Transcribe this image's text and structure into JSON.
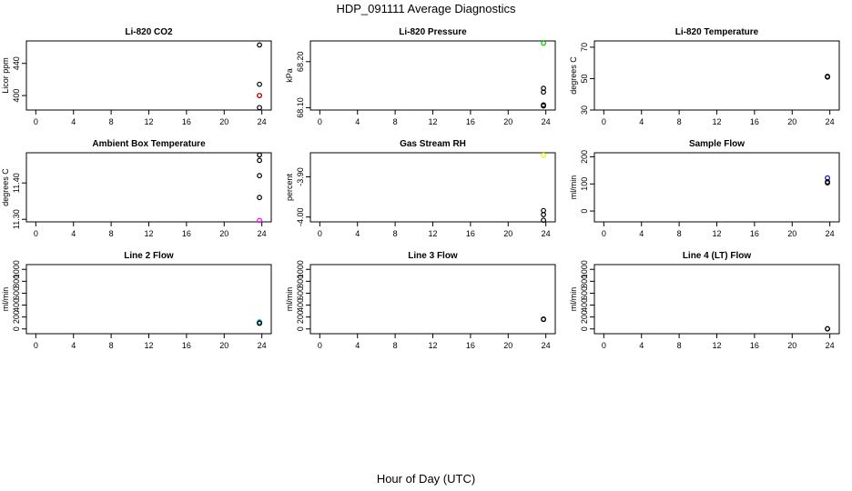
{
  "figure": {
    "title": "HDP_091111  Average Diagnostics",
    "xlabel": "Hour of Day (UTC)"
  },
  "colors": {
    "axis": "#000000",
    "series": "#000000"
  },
  "chart_data": [
    {
      "type": "scatter",
      "title": "Li-820 CO2",
      "ylabel": "Licor ppm",
      "xlim": [
        -1,
        25
      ],
      "ylim": [
        382,
        468
      ],
      "xticks": [
        0,
        4,
        8,
        12,
        16,
        20,
        24
      ],
      "xticklabels": [
        "0",
        "4",
        "8",
        "12",
        "16",
        "20",
        "24"
      ],
      "yticks": [
        400,
        440
      ],
      "yticklabels": [
        "400",
        "440"
      ],
      "points": [
        {
          "x": 23.75,
          "y": 463,
          "color": "#000000"
        },
        {
          "x": 23.75,
          "y": 414,
          "color": "#000000"
        },
        {
          "x": 23.75,
          "y": 400,
          "color": "#000000"
        },
        {
          "x": 23.75,
          "y": 400,
          "color": "#cc0000"
        },
        {
          "x": 23.75,
          "y": 385,
          "color": "#000000"
        }
      ]
    },
    {
      "type": "scatter",
      "title": "Li-820 Pressure",
      "ylabel": "kPa",
      "xlim": [
        -1,
        25
      ],
      "ylim": [
        68.095,
        68.245
      ],
      "xticks": [
        0,
        4,
        8,
        12,
        16,
        20,
        24
      ],
      "xticklabels": [
        "0",
        "4",
        "8",
        "12",
        "16",
        "20",
        "24"
      ],
      "yticks": [
        68.1,
        68.2
      ],
      "yticklabels": [
        "68.10",
        "68.20"
      ],
      "points": [
        {
          "x": 23.75,
          "y": 68.24,
          "color": "#00cc00"
        },
        {
          "x": 23.75,
          "y": 68.142,
          "color": "#000000"
        },
        {
          "x": 23.75,
          "y": 68.134,
          "color": "#000000"
        },
        {
          "x": 23.75,
          "y": 68.106,
          "color": "#000000"
        },
        {
          "x": 23.75,
          "y": 68.104,
          "color": "#000000"
        }
      ]
    },
    {
      "type": "scatter",
      "title": "Li-820 Temperature",
      "ylabel": "degrees C",
      "xlim": [
        -1,
        25
      ],
      "ylim": [
        30,
        74
      ],
      "xticks": [
        0,
        4,
        8,
        12,
        16,
        20,
        24
      ],
      "xticklabels": [
        "0",
        "4",
        "8",
        "12",
        "16",
        "20",
        "24"
      ],
      "yticks": [
        30,
        50,
        70
      ],
      "yticklabels": [
        "30",
        "50",
        "70"
      ],
      "points": [
        {
          "x": 23.75,
          "y": 51.2,
          "color": "#000000"
        },
        {
          "x": 23.75,
          "y": 51.0,
          "color": "#000000"
        },
        {
          "x": 23.75,
          "y": 51.4,
          "color": "#000000"
        }
      ]
    },
    {
      "type": "scatter",
      "title": "Ambient Box Temperature",
      "ylabel": "degrees C",
      "xlim": [
        -1,
        25
      ],
      "ylim": [
        11.293,
        11.483
      ],
      "xticks": [
        0,
        4,
        8,
        12,
        16,
        20,
        24
      ],
      "xticklabels": [
        "0",
        "4",
        "8",
        "12",
        "16",
        "20",
        "24"
      ],
      "yticks": [
        11.3,
        11.4
      ],
      "yticklabels": [
        "11.30",
        "11.40"
      ],
      "points": [
        {
          "x": 23.75,
          "y": 11.477,
          "color": "#000000"
        },
        {
          "x": 23.75,
          "y": 11.462,
          "color": "#000000"
        },
        {
          "x": 23.75,
          "y": 11.42,
          "color": "#000000"
        },
        {
          "x": 23.75,
          "y": 11.36,
          "color": "#000000"
        },
        {
          "x": 23.75,
          "y": 11.297,
          "color": "#ff00ff"
        }
      ]
    },
    {
      "type": "scatter",
      "title": "Gas Stream RH",
      "ylabel": "percent",
      "xlim": [
        -1,
        25
      ],
      "ylim": [
        -4.012,
        -3.84
      ],
      "xticks": [
        0,
        4,
        8,
        12,
        16,
        20,
        24
      ],
      "xticklabels": [
        "0",
        "4",
        "8",
        "12",
        "16",
        "20",
        "24"
      ],
      "yticks": [
        -4.0,
        -3.9
      ],
      "yticklabels": [
        "-4.00",
        "-3.90"
      ],
      "points": [
        {
          "x": 23.75,
          "y": -3.846,
          "color": "#eeee00"
        },
        {
          "x": 23.75,
          "y": -3.984,
          "color": "#000000"
        },
        {
          "x": 23.75,
          "y": -3.994,
          "color": "#000000"
        },
        {
          "x": 23.75,
          "y": -4.008,
          "color": "#000000"
        }
      ]
    },
    {
      "type": "scatter",
      "title": "Sample Flow",
      "ylabel": "ml/min",
      "xlim": [
        -1,
        25
      ],
      "ylim": [
        -40,
        215
      ],
      "xticks": [
        0,
        4,
        8,
        12,
        16,
        20,
        24
      ],
      "xticklabels": [
        "0",
        "4",
        "8",
        "12",
        "16",
        "20",
        "24"
      ],
      "yticks": [
        0,
        100,
        200
      ],
      "yticklabels": [
        "0",
        "100",
        "200"
      ],
      "points": [
        {
          "x": 23.75,
          "y": 122,
          "color": "#0000cc"
        },
        {
          "x": 23.75,
          "y": 108,
          "color": "#000000"
        },
        {
          "x": 23.75,
          "y": 104,
          "color": "#000000"
        }
      ]
    },
    {
      "type": "scatter",
      "title": "Line 2 Flow",
      "ylabel": "ml/min",
      "xlim": [
        -1,
        25
      ],
      "ylim": [
        -80,
        1080
      ],
      "xticks": [
        0,
        4,
        8,
        12,
        16,
        20,
        24
      ],
      "xticklabels": [
        "0",
        "4",
        "8",
        "12",
        "16",
        "20",
        "24"
      ],
      "yticks": [
        0,
        200,
        400,
        600,
        800,
        1000
      ],
      "yticklabels": [
        "0",
        "200",
        "400",
        "600",
        "800",
        "1000"
      ],
      "points": [
        {
          "x": 23.75,
          "y": 120,
          "color": "#00cccc"
        },
        {
          "x": 23.75,
          "y": 100,
          "color": "#000000"
        },
        {
          "x": 23.75,
          "y": 95,
          "color": "#000000"
        }
      ]
    },
    {
      "type": "scatter",
      "title": "Line 3 Flow",
      "ylabel": "ml/min",
      "xlim": [
        -1,
        25
      ],
      "ylim": [
        -80,
        1080
      ],
      "xticks": [
        0,
        4,
        8,
        12,
        16,
        20,
        24
      ],
      "xticklabels": [
        "0",
        "4",
        "8",
        "12",
        "16",
        "20",
        "24"
      ],
      "yticks": [
        0,
        200,
        400,
        600,
        800,
        1000
      ],
      "yticklabels": [
        "0",
        "200",
        "400",
        "600",
        "800",
        "1000"
      ],
      "points": [
        {
          "x": 23.75,
          "y": 165,
          "color": "#000000"
        },
        {
          "x": 23.75,
          "y": 160,
          "color": "#000000"
        }
      ]
    },
    {
      "type": "scatter",
      "title": "Line 4 (LT) Flow",
      "ylabel": "ml/min",
      "xlim": [
        -1,
        25
      ],
      "ylim": [
        -80,
        1080
      ],
      "xticks": [
        0,
        4,
        8,
        12,
        16,
        20,
        24
      ],
      "xticklabels": [
        "0",
        "4",
        "8",
        "12",
        "16",
        "20",
        "24"
      ],
      "yticks": [
        0,
        200,
        400,
        600,
        800,
        1000
      ],
      "yticklabels": [
        "0",
        "200",
        "400",
        "600",
        "800",
        "1000"
      ],
      "points": [
        {
          "x": 23.75,
          "y": 3,
          "color": "#000000"
        },
        {
          "x": 23.75,
          "y": 0,
          "color": "#000000"
        }
      ]
    }
  ]
}
